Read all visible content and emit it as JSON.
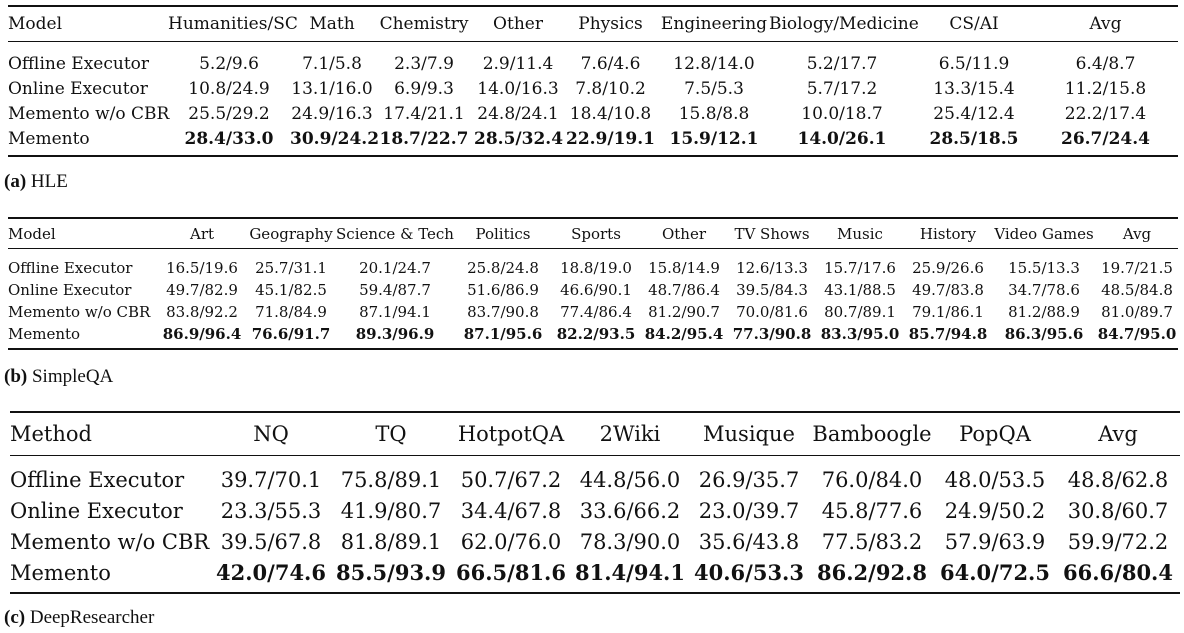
{
  "hle": {
    "caption_label": "(a)",
    "caption_text": "HLE",
    "headers": [
      "Model",
      "Humanities/SC",
      "Math",
      "Chemistry",
      "Other",
      "Physics",
      "Engineering",
      "Biology/Medicine",
      "CS/AI",
      "Avg"
    ],
    "rows": [
      [
        "Offline Executor",
        "5.2/9.6",
        "7.1/5.8",
        "2.3/7.9",
        "2.9/11.4",
        "7.6/4.6",
        "12.8/14.0",
        "5.2/17.7",
        "6.5/11.9",
        "6.4/8.7"
      ],
      [
        "Online Executor",
        "10.8/24.9",
        "13.1/16.0",
        "6.9/9.3",
        "14.0/16.3",
        "7.8/10.2",
        "7.5/5.3",
        "5.7/17.2",
        "13.3/15.4",
        "11.2/15.8"
      ],
      [
        "Memento w/o CBR",
        "25.5/29.2",
        "24.9/16.3",
        "17.4/21.1",
        "24.8/24.1",
        "18.4/10.8",
        "15.8/8.8",
        "10.0/18.7",
        "25.4/12.4",
        "22.2/17.4"
      ],
      [
        "Memento",
        "28.4/33.0",
        "30.9/24.2",
        "18.7/22.7",
        "28.5/32.4",
        "22.9/19.1",
        "15.9/12.1",
        "14.0/26.1",
        "28.5/18.5",
        "26.7/24.4"
      ]
    ]
  },
  "simpleqa": {
    "caption_label": "(b)",
    "caption_text": "SimpleQA",
    "headers": [
      "Model",
      "Art",
      "Geography",
      "Science & Tech",
      "Politics",
      "Sports",
      "Other",
      "TV Shows",
      "Music",
      "History",
      "Video Games",
      "Avg"
    ],
    "rows": [
      [
        "Offline Executor",
        "16.5/19.6",
        "25.7/31.1",
        "20.1/24.7",
        "25.8/24.8",
        "18.8/19.0",
        "15.8/14.9",
        "12.6/13.3",
        "15.7/17.6",
        "25.9/26.6",
        "15.5/13.3",
        "19.7/21.5"
      ],
      [
        "Online Executor",
        "49.7/82.9",
        "45.1/82.5",
        "59.4/87.7",
        "51.6/86.9",
        "46.6/90.1",
        "48.7/86.4",
        "39.5/84.3",
        "43.1/88.5",
        "49.7/83.8",
        "34.7/78.6",
        "48.5/84.8"
      ],
      [
        "Memento w/o CBR",
        "83.8/92.2",
        "71.8/84.9",
        "87.1/94.1",
        "83.7/90.8",
        "77.4/86.4",
        "81.2/90.7",
        "70.0/81.6",
        "80.7/89.1",
        "79.1/86.1",
        "81.2/88.9",
        "81.0/89.7"
      ],
      [
        "Memento",
        "86.9/96.4",
        "76.6/91.7",
        "89.3/96.9",
        "87.1/95.6",
        "82.2/93.5",
        "84.2/95.4",
        "77.3/90.8",
        "83.3/95.0",
        "85.7/94.8",
        "86.3/95.6",
        "84.7/95.0"
      ]
    ]
  },
  "deepresearcher": {
    "caption_label": "(c)",
    "caption_text": "DeepResearcher",
    "headers": [
      "Method",
      "NQ",
      "TQ",
      "HotpotQA",
      "2Wiki",
      "Musique",
      "Bamboogle",
      "PopQA",
      "Avg"
    ],
    "rows": [
      [
        "Offline Executor",
        "39.7/70.1",
        "75.8/89.1",
        "50.7/67.2",
        "44.8/56.0",
        "26.9/35.7",
        "76.0/84.0",
        "48.0/53.5",
        "48.8/62.8"
      ],
      [
        "Online Executor",
        "23.3/55.3",
        "41.9/80.7",
        "34.4/67.8",
        "33.6/66.2",
        "23.0/39.7",
        "45.8/77.6",
        "24.9/50.2",
        "30.8/60.7"
      ],
      [
        "Memento w/o CBR",
        "39.5/67.8",
        "81.8/89.1",
        "62.0/76.0",
        "78.3/90.0",
        "35.6/43.8",
        "77.5/83.2",
        "57.9/63.9",
        "59.9/72.2"
      ],
      [
        "Memento",
        "42.0/74.6",
        "85.5/93.9",
        "66.5/81.6",
        "81.4/94.1",
        "40.6/53.3",
        "86.2/92.8",
        "64.0/72.5",
        "66.6/80.4"
      ]
    ]
  }
}
